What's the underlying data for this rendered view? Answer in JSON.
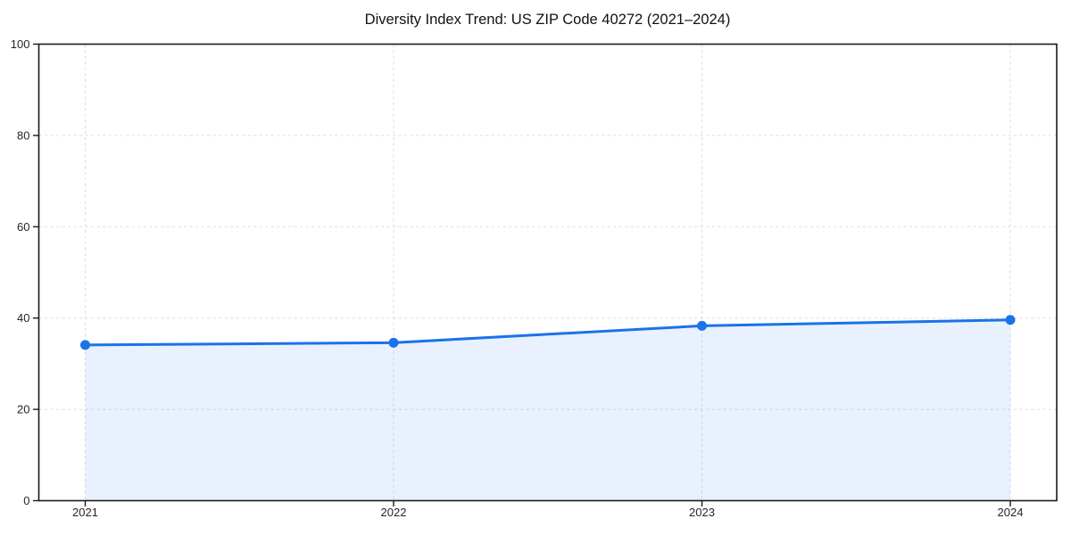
{
  "chart_data": {
    "type": "area",
    "title": "Diversity Index Trend: US ZIP Code 40272 (2021–2024)",
    "x": [
      "2021",
      "2022",
      "2023",
      "2024"
    ],
    "series": [
      {
        "name": "Diversity Index",
        "values": [
          34.1,
          34.6,
          38.3,
          39.6
        ]
      }
    ],
    "xlabel": "",
    "ylabel": "",
    "ylim": [
      0,
      100
    ],
    "yticks": [
      0,
      20,
      40,
      60,
      80,
      100
    ],
    "grid": "dashed both axes",
    "legend_position": "none",
    "marker": "circle",
    "colors": {
      "line": "#1a73e8",
      "marker": "#1a73e8",
      "fill": "rgba(26,115,232,0.10)",
      "grid": "#dfdfdf",
      "spine": "#1a1a1a",
      "tick_label": "#262626",
      "title": "#111111",
      "background": "#ffffff"
    }
  }
}
